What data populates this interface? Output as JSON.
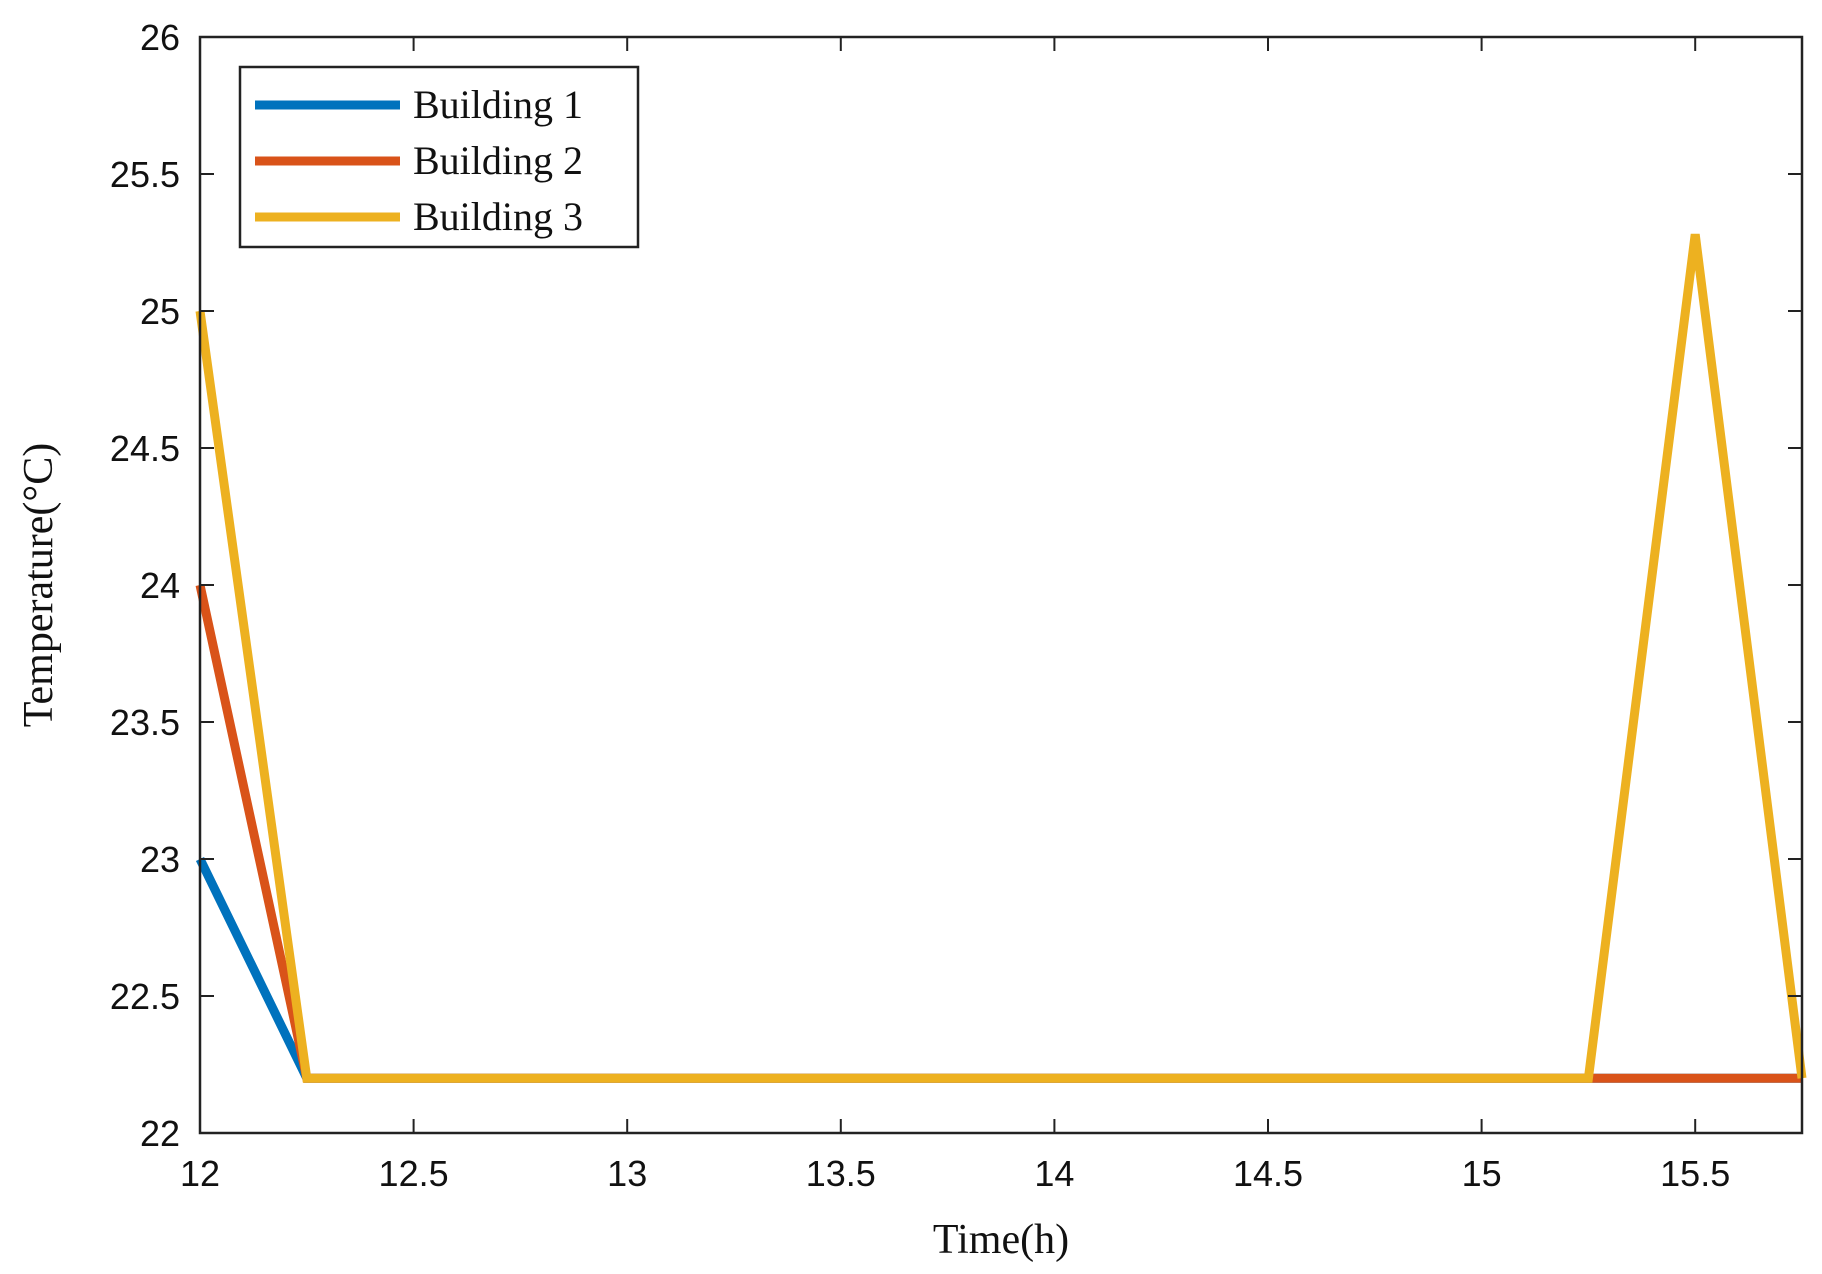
{
  "chart_data": {
    "type": "line",
    "xlabel": "Time(h)",
    "ylabel": "Temperature(°C)",
    "xlim": [
      12,
      15.75
    ],
    "ylim": [
      22,
      26
    ],
    "xticks": [
      12,
      12.5,
      13,
      13.5,
      14,
      14.5,
      15,
      15.5
    ],
    "xtick_labels": [
      "12",
      "12.5",
      "13",
      "13.5",
      "14",
      "14.5",
      "15",
      "15.5"
    ],
    "yticks": [
      22,
      22.5,
      23,
      23.5,
      24,
      24.5,
      25,
      25.5,
      26
    ],
    "ytick_labels": [
      "22",
      "22.5",
      "23",
      "23.5",
      "24",
      "24.5",
      "25",
      "25.5",
      "26"
    ],
    "grid": false,
    "legend_position": "top-left",
    "series": [
      {
        "name": "Building 1",
        "color": "#0072BD",
        "x": [
          12,
          12.25,
          12.5,
          12.75,
          13,
          13.25,
          13.5,
          13.75,
          14,
          14.25,
          14.5,
          14.75,
          15,
          15.25,
          15.5,
          15.75
        ],
        "y": [
          23,
          22.2,
          22.2,
          22.2,
          22.2,
          22.2,
          22.2,
          22.2,
          22.2,
          22.2,
          22.2,
          22.2,
          22.2,
          22.2,
          22.2,
          22.2
        ]
      },
      {
        "name": "Building 2",
        "color": "#D95319",
        "x": [
          12,
          12.25,
          12.5,
          12.75,
          13,
          13.25,
          13.5,
          13.75,
          14,
          14.25,
          14.5,
          14.75,
          15,
          15.25,
          15.5,
          15.75
        ],
        "y": [
          24,
          22.2,
          22.2,
          22.2,
          22.2,
          22.2,
          22.2,
          22.2,
          22.2,
          22.2,
          22.2,
          22.2,
          22.2,
          22.2,
          22.2,
          22.2
        ]
      },
      {
        "name": "Building 3",
        "color": "#EDB120",
        "x": [
          12,
          12.25,
          12.5,
          12.75,
          13,
          13.25,
          13.5,
          13.75,
          14,
          14.25,
          14.5,
          14.75,
          15,
          15.25,
          15.5,
          15.75
        ],
        "y": [
          25,
          22.2,
          22.2,
          22.2,
          22.2,
          22.2,
          22.2,
          22.2,
          22.2,
          22.2,
          22.2,
          22.2,
          22.2,
          22.2,
          25.28,
          22.2
        ]
      }
    ]
  }
}
